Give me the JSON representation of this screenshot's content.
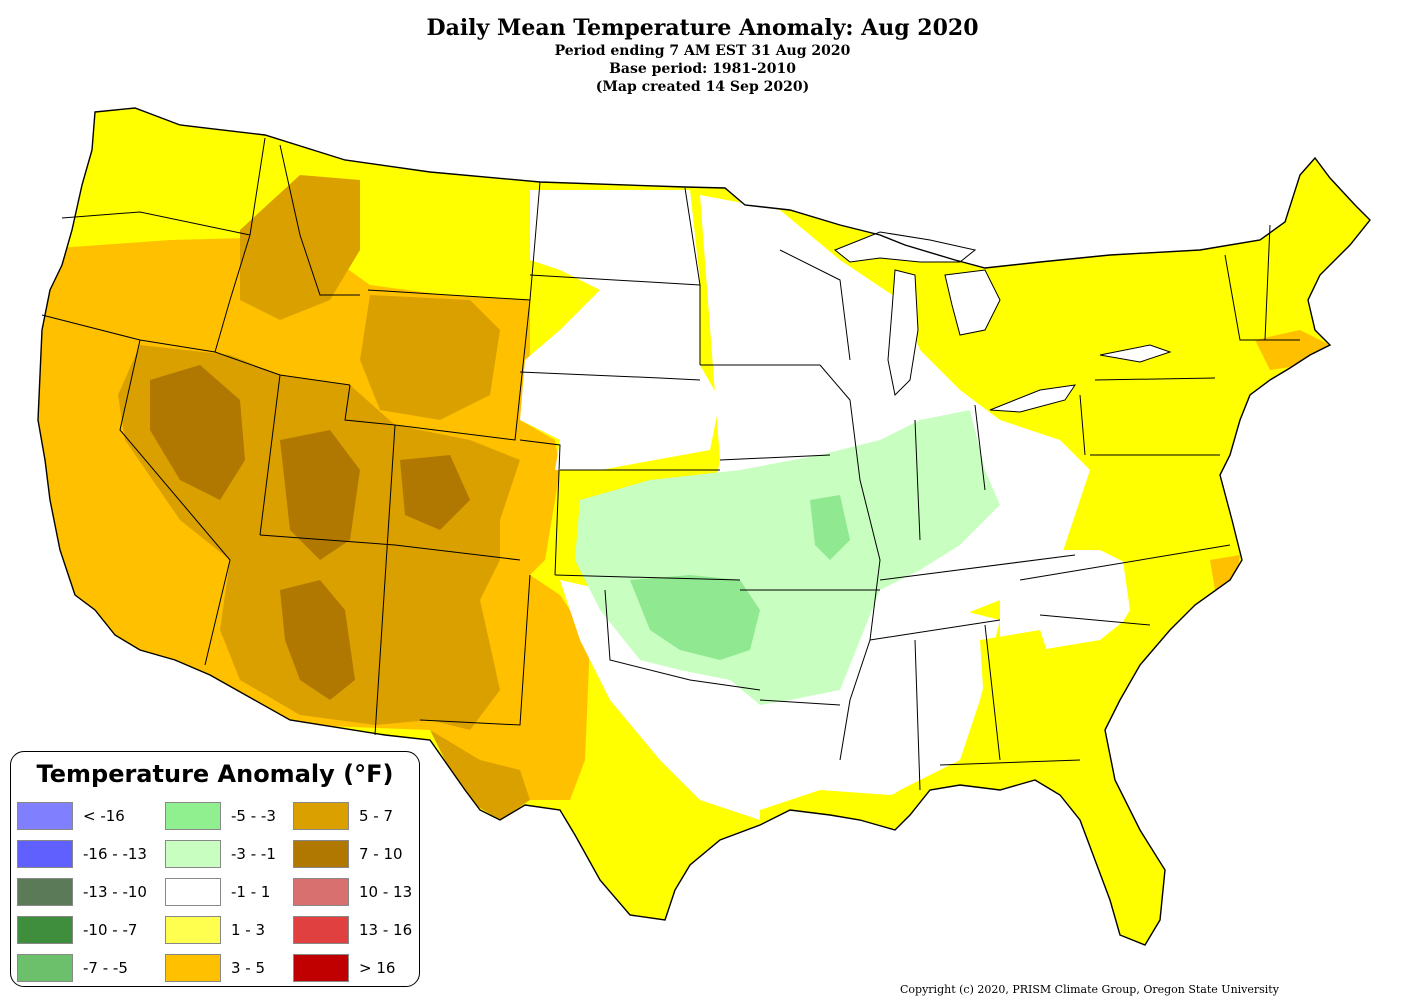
{
  "title": {
    "main": "Daily Mean Temperature Anomaly: Aug 2020",
    "line1": "Period ending 7 AM EST 31 Aug 2020",
    "line2": "Base period: 1981-2010",
    "line3": "(Map created 14 Sep 2020)"
  },
  "legend": {
    "title": "Temperature Anomaly (°F)",
    "items": [
      {
        "label": "< -16",
        "color": "#8080ff"
      },
      {
        "label": "-16 - -13",
        "color": "#6060ff"
      },
      {
        "label": "-13 - -10",
        "color": "#5a7a58"
      },
      {
        "label": "-10 - -7",
        "color": "#3e8e3e"
      },
      {
        "label": "-7 - -5",
        "color": "#6cc06c"
      },
      {
        "label": "-5 - -3",
        "color": "#90f090"
      },
      {
        "label": "-3 - -1",
        "color": "#c8ffc0"
      },
      {
        "label": "-1 - 1",
        "color": "#ffffff"
      },
      {
        "label": "1 - 3",
        "color": "#ffff50"
      },
      {
        "label": "3 - 5",
        "color": "#ffc000"
      },
      {
        "label": "5 - 7",
        "color": "#daa000"
      },
      {
        "label": "7 - 10",
        "color": "#b07800"
      },
      {
        "label": "10 - 13",
        "color": "#d87070"
      },
      {
        "label": "13 - 16",
        "color": "#e04040"
      },
      {
        "label": "> 16",
        "color": "#c00000"
      }
    ]
  },
  "colors": {
    "warm_1_3": "#ffff00",
    "warm_3_5": "#ffc000",
    "warm_5_7": "#daa000",
    "warm_7_10": "#b07800",
    "cool_1_3": "#c8ffc0",
    "cool_3_5": "#90e890",
    "neutral": "#ffffff",
    "boundary": "#000000"
  },
  "copyright": "Copyright (c) 2020, PRISM Climate Group, Oregon State University"
}
